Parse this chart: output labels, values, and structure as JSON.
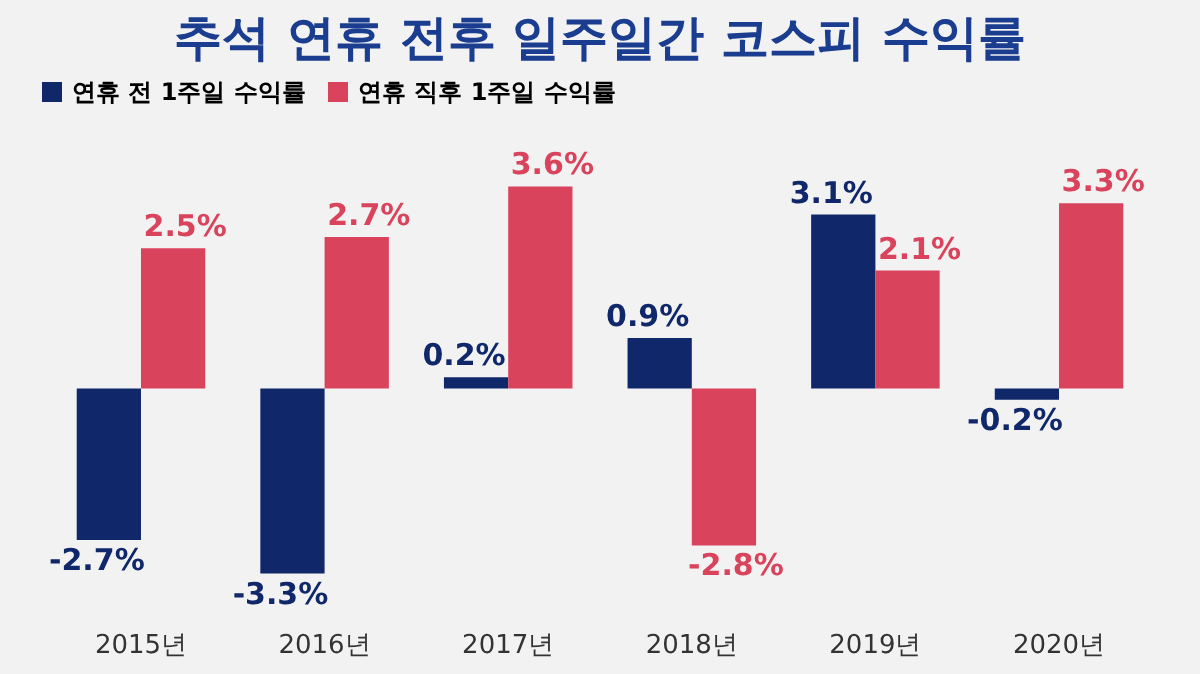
{
  "chart_data": {
    "type": "bar",
    "title": "추석 연휴 전후 일주일간 코스피 수익률",
    "categories": [
      "2015년",
      "2016년",
      "2017년",
      "2018년",
      "2019년",
      "2020년"
    ],
    "series": [
      {
        "name": "연휴 전 1주일 수익률",
        "color": "#10286a",
        "values": [
          -2.7,
          -3.3,
          0.2,
          0.9,
          3.1,
          -0.2
        ],
        "value_labels": [
          "-2.7%",
          "-3.3%",
          "0.2%",
          "0.9%",
          "3.1%",
          "-0.2%"
        ]
      },
      {
        "name": "연휴 직후 1주일 수익률",
        "color": "#d9435c",
        "values": [
          2.5,
          2.7,
          3.6,
          -2.8,
          2.1,
          3.3
        ],
        "value_labels": [
          "2.5%",
          "2.7%",
          "3.6%",
          "-2.8%",
          "2.1%",
          "3.3%"
        ]
      }
    ],
    "legend": "top"
  }
}
